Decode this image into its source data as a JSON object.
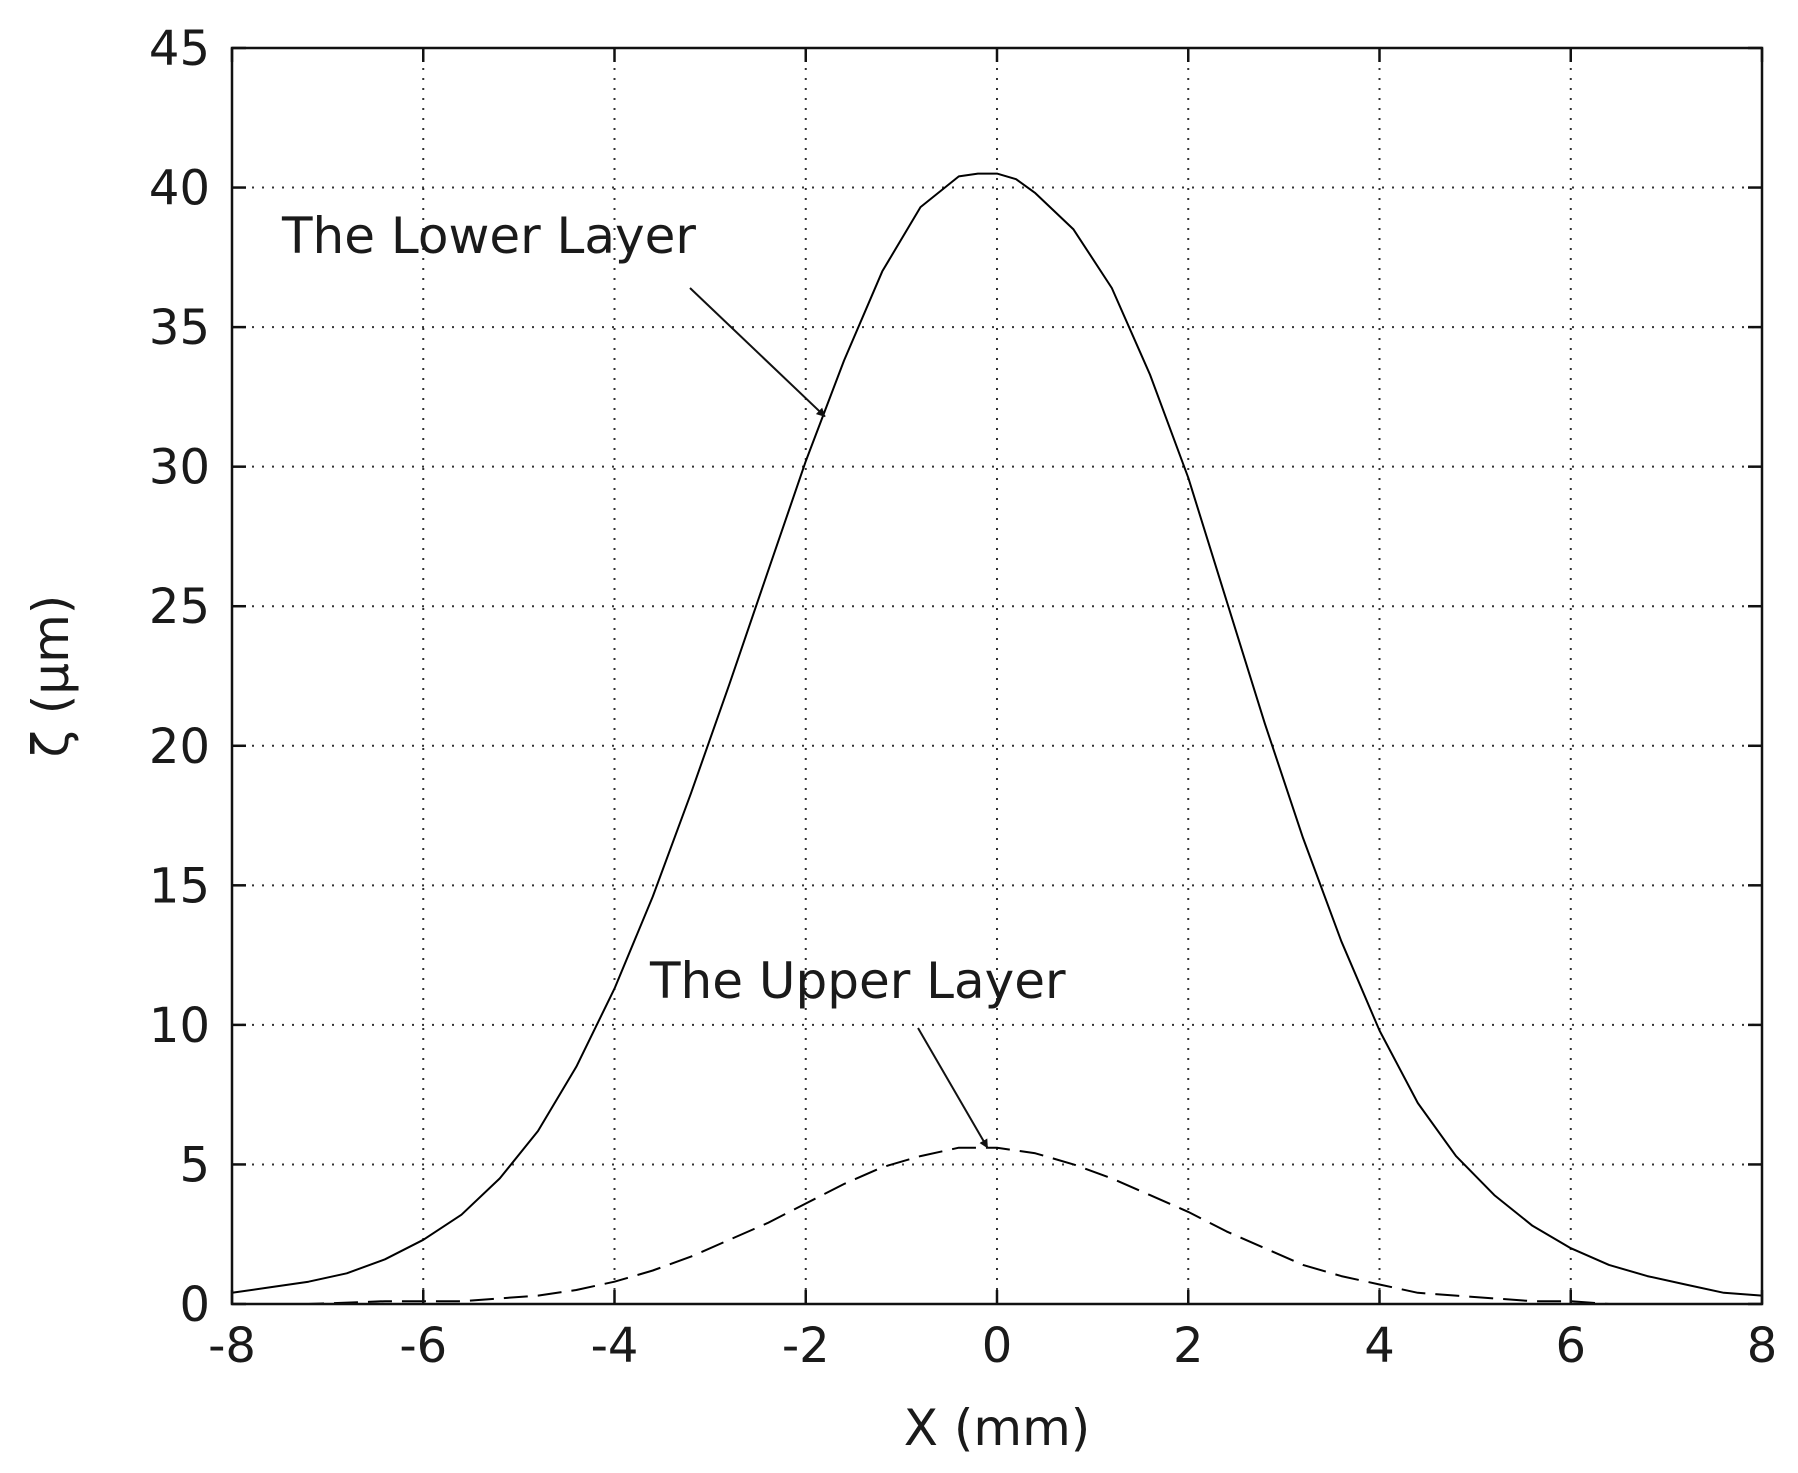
{
  "chart_data": {
    "type": "line",
    "xlabel": "X (mm)",
    "ylabel": "ζ (μm)",
    "xlim": [
      -8,
      8
    ],
    "ylim": [
      0,
      45
    ],
    "xticks": [
      -8,
      -6,
      -4,
      -2,
      0,
      2,
      4,
      6,
      8
    ],
    "yticks": [
      0,
      5,
      10,
      15,
      20,
      25,
      30,
      35,
      40,
      45
    ],
    "grid": true,
    "series": [
      {
        "name": "The Lower Layer",
        "style": "solid",
        "color": "#000000",
        "x": [
          -8.0,
          -7.6,
          -7.2,
          -6.8,
          -6.4,
          -6.0,
          -5.6,
          -5.2,
          -4.8,
          -4.4,
          -4.0,
          -3.6,
          -3.2,
          -2.8,
          -2.4,
          -2.0,
          -1.6,
          -1.2,
          -0.8,
          -0.4,
          -0.2,
          0.0,
          0.2,
          0.4,
          0.8,
          1.2,
          1.6,
          2.0,
          2.4,
          2.8,
          3.2,
          3.6,
          4.0,
          4.4,
          4.8,
          5.2,
          5.6,
          6.0,
          6.4,
          6.8,
          7.2,
          7.6,
          8.0
        ],
        "y": [
          0.4,
          0.6,
          0.8,
          1.1,
          1.6,
          2.3,
          3.2,
          4.5,
          6.2,
          8.5,
          11.3,
          14.6,
          18.3,
          22.2,
          26.2,
          30.2,
          33.8,
          37.0,
          39.3,
          40.4,
          40.5,
          40.5,
          40.3,
          39.8,
          38.5,
          36.4,
          33.3,
          29.6,
          25.2,
          20.8,
          16.7,
          13.0,
          9.8,
          7.2,
          5.3,
          3.9,
          2.8,
          2.0,
          1.4,
          1.0,
          0.7,
          0.4,
          0.3
        ]
      },
      {
        "name": "The Upper Layer",
        "style": "dashed",
        "color": "#000000",
        "x": [
          -8.0,
          -7.2,
          -6.4,
          -5.6,
          -5.2,
          -4.8,
          -4.4,
          -4.0,
          -3.6,
          -3.2,
          -2.8,
          -2.4,
          -2.0,
          -1.6,
          -1.2,
          -0.8,
          -0.4,
          0.0,
          0.4,
          0.8,
          1.2,
          1.6,
          2.0,
          2.4,
          2.8,
          3.2,
          3.6,
          4.0,
          4.4,
          4.8,
          5.2,
          5.6,
          6.0,
          6.4,
          7.2,
          8.0
        ],
        "y": [
          0.0,
          0.0,
          0.1,
          0.1,
          0.2,
          0.3,
          0.5,
          0.8,
          1.2,
          1.7,
          2.3,
          2.9,
          3.6,
          4.3,
          4.9,
          5.3,
          5.6,
          5.6,
          5.4,
          5.0,
          4.5,
          3.9,
          3.3,
          2.6,
          2.0,
          1.4,
          1.0,
          0.7,
          0.4,
          0.3,
          0.2,
          0.1,
          0.1,
          0.0,
          0.0,
          0.0
        ]
      }
    ],
    "annotations": [
      {
        "text": "The Lower Layer",
        "target_x": -1.8,
        "target_y": 31.8
      },
      {
        "text": "The Upper Layer",
        "target_x": -0.1,
        "target_y": 5.6
      }
    ]
  }
}
